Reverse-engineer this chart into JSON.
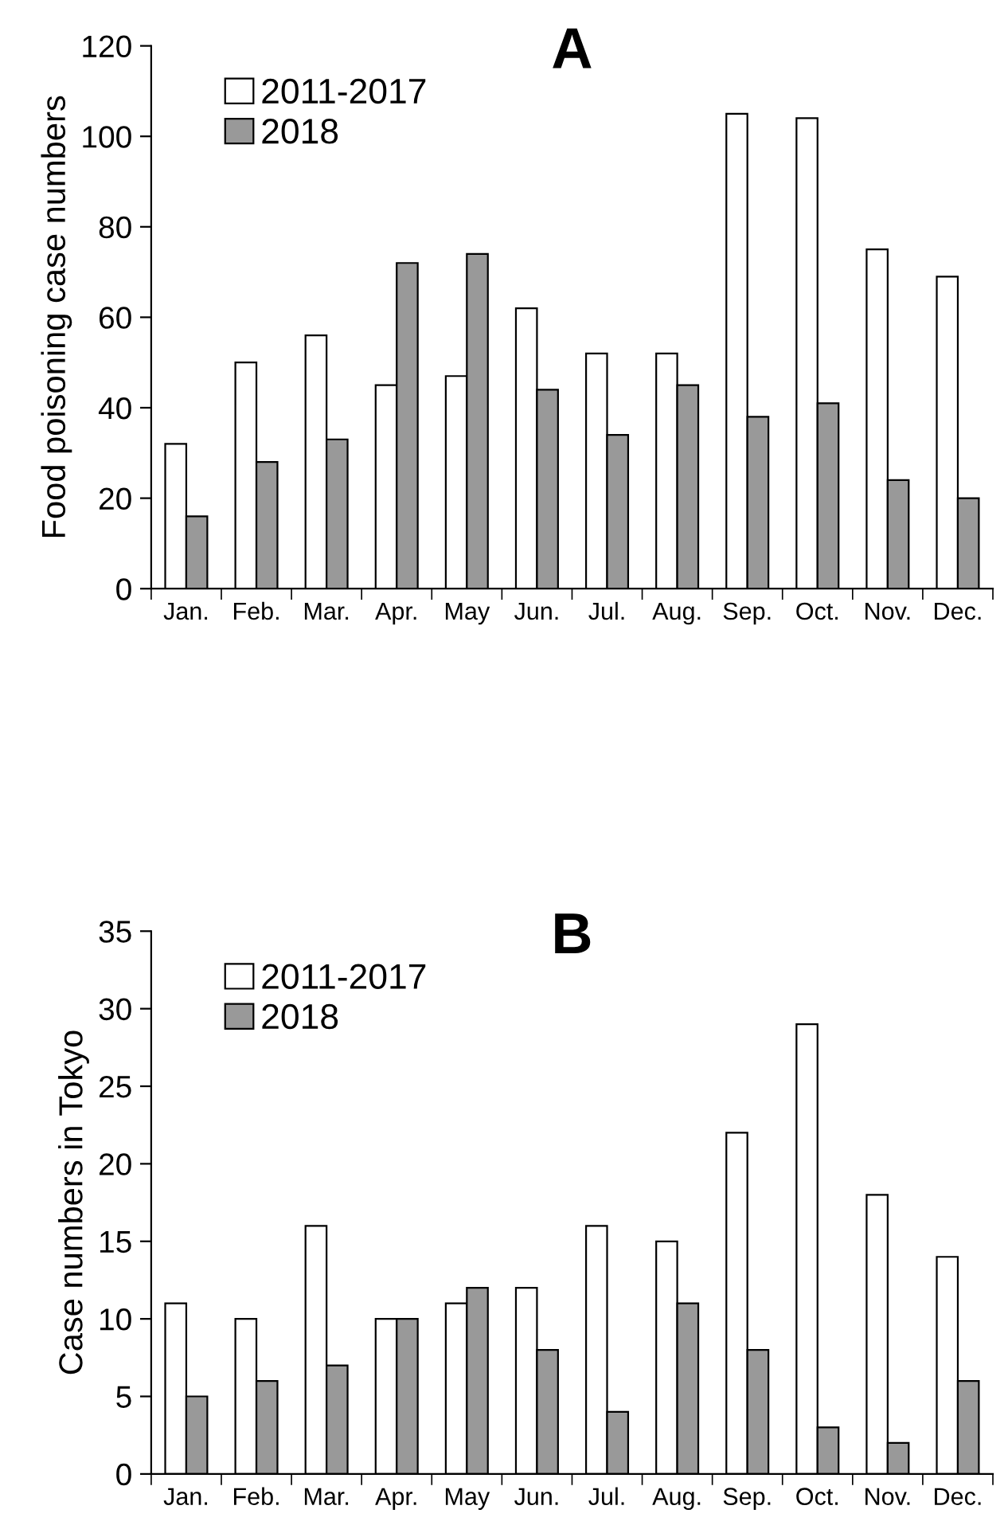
{
  "chart_data": [
    {
      "type": "bar",
      "title": "A",
      "ylabel": "Food poisoning case numbers",
      "categories": [
        "Jan.",
        "Feb.",
        "Mar.",
        "Apr.",
        "May",
        "Jun.",
        "Jul.",
        "Aug.",
        "Sep.",
        "Oct.",
        "Nov.",
        "Dec."
      ],
      "series": [
        {
          "name": "2011-2017",
          "color": "#ffffff",
          "values": [
            32,
            50,
            56,
            45,
            47,
            62,
            52,
            52,
            105,
            104,
            75,
            69
          ]
        },
        {
          "name": "2018",
          "color": "#999999",
          "values": [
            16,
            28,
            33,
            72,
            74,
            44,
            34,
            45,
            38,
            41,
            24,
            20
          ]
        }
      ],
      "ylim": [
        0,
        120
      ],
      "yticks": [
        0,
        20,
        40,
        60,
        80,
        100,
        120
      ],
      "grid": false,
      "legend": "top left"
    },
    {
      "type": "bar",
      "title": "B",
      "ylabel": "Case numbers in Tokyo",
      "categories": [
        "Jan.",
        "Feb.",
        "Mar.",
        "Apr.",
        "May",
        "Jun.",
        "Jul.",
        "Aug.",
        "Sep.",
        "Oct.",
        "Nov.",
        "Dec."
      ],
      "series": [
        {
          "name": "2011-2017",
          "color": "#ffffff",
          "values": [
            11,
            10,
            16,
            10,
            11,
            12,
            16,
            15,
            22,
            29,
            18,
            14
          ]
        },
        {
          "name": "2018",
          "color": "#999999",
          "values": [
            5,
            6,
            7,
            10,
            12,
            8,
            4,
            11,
            8,
            3,
            2,
            6
          ]
        }
      ],
      "ylim": [
        0,
        35
      ],
      "yticks": [
        0,
        5,
        10,
        15,
        20,
        25,
        30,
        35
      ],
      "grid": false,
      "legend": "top left"
    }
  ]
}
